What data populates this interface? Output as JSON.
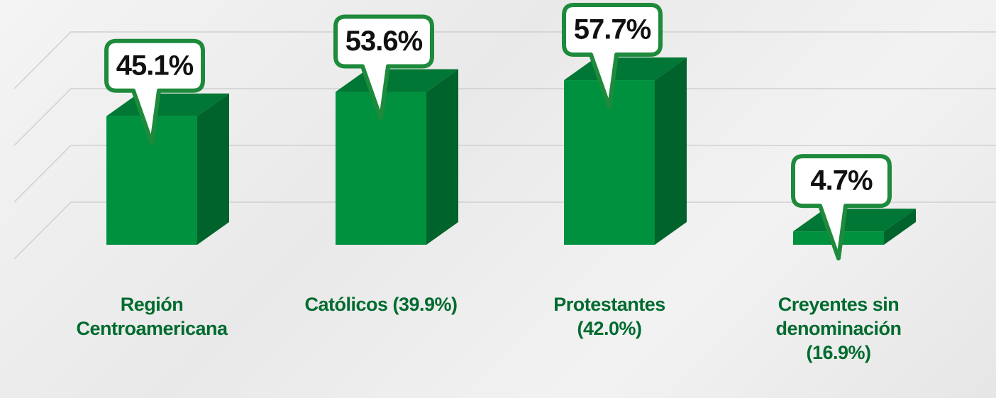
{
  "chart_data": {
    "type": "bar3d",
    "categories": [
      "Región Centroamericana",
      "Católicos (39.9%)",
      "Protestantes (42.0%)",
      "Creyentes sin denominación (16.9%)"
    ],
    "values": [
      45.1,
      53.6,
      57.7,
      4.7
    ],
    "value_labels": [
      "45.1%",
      "53.6%",
      "57.7%",
      "4.7%"
    ],
    "color": "#00913f"
  }
}
